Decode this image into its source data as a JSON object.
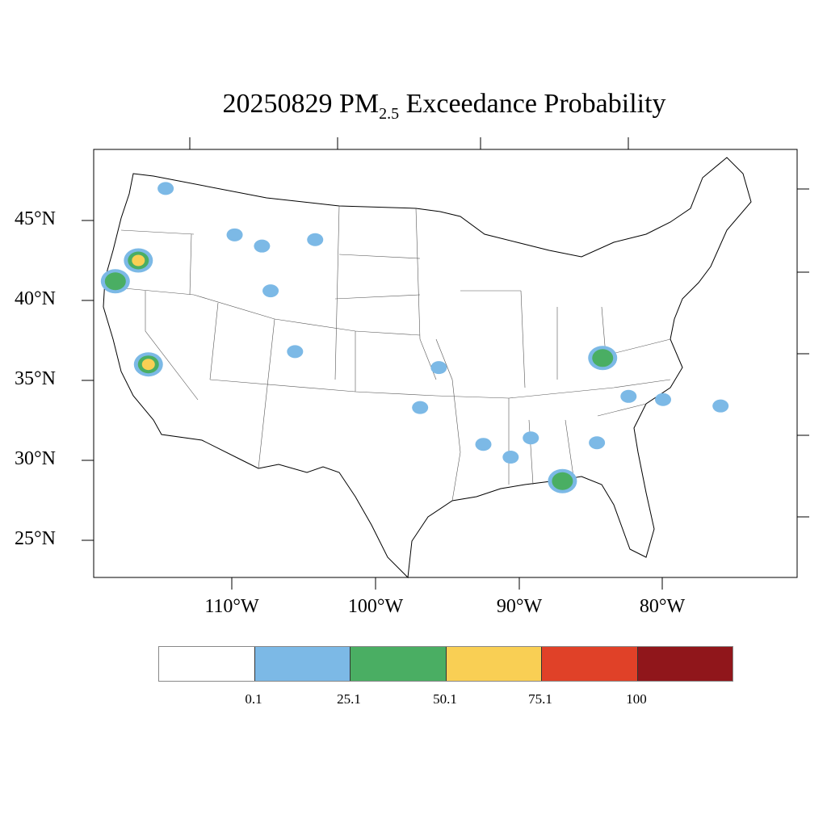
{
  "title": {
    "main": "20250829 PM",
    "sub": "2.5",
    "rest": " Exceedance Probability"
  },
  "lat_labels": [
    "45°N",
    "40°N",
    "35°N",
    "30°N",
    "25°N"
  ],
  "lon_labels": [
    "110°W",
    "100°W",
    "90°W",
    "80°W"
  ],
  "colorbar": {
    "colors": [
      "#ffffff",
      "#7cb9e6",
      "#4aae63",
      "#f9cf54",
      "#e04128",
      "#90161b"
    ],
    "labels": [
      "0.1",
      "25.1",
      "50.1",
      "75.1",
      "100"
    ]
  },
  "plumes": [
    {
      "lon": -116.5,
      "lat": 42.5,
      "class": 3
    },
    {
      "lon": -115.8,
      "lat": 36.0,
      "class": 3
    },
    {
      "lon": -118.1,
      "lat": 41.2,
      "class": 2
    },
    {
      "lon": -109.8,
      "lat": 44.1,
      "class": 1
    },
    {
      "lon": -107.9,
      "lat": 43.4,
      "class": 1
    },
    {
      "lon": -107.3,
      "lat": 40.6,
      "class": 1
    },
    {
      "lon": -114.6,
      "lat": 47.0,
      "class": 1
    },
    {
      "lon": -95.6,
      "lat": 35.8,
      "class": 1
    },
    {
      "lon": -96.9,
      "lat": 33.3,
      "class": 1
    },
    {
      "lon": -84.6,
      "lat": 31.1,
      "class": 1
    },
    {
      "lon": -82.4,
      "lat": 34.0,
      "class": 1
    },
    {
      "lon": -87.0,
      "lat": 28.7,
      "class": 2
    },
    {
      "lon": -84.2,
      "lat": 36.4,
      "class": 2
    },
    {
      "lon": -89.2,
      "lat": 31.4,
      "class": 1
    },
    {
      "lon": -90.6,
      "lat": 30.2,
      "class": 1
    },
    {
      "lon": -92.5,
      "lat": 31.0,
      "class": 1
    },
    {
      "lon": -105.6,
      "lat": 36.8,
      "class": 1
    },
    {
      "lon": -104.2,
      "lat": 43.8,
      "class": 1
    },
    {
      "lon": -80.0,
      "lat": 33.8,
      "class": 1
    },
    {
      "lon": -76.0,
      "lat": 33.4,
      "class": 1
    }
  ]
}
